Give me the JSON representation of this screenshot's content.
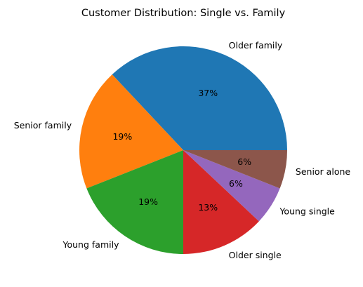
{
  "chart_data": {
    "type": "pie",
    "title": "Customer Distribution: Single vs. Family",
    "slices": [
      {
        "label": "Older family",
        "value": 37,
        "pct_label": "37%",
        "color": "#1f77b4"
      },
      {
        "label": "Senior family",
        "value": 19,
        "pct_label": "19%",
        "color": "#ff7f0e"
      },
      {
        "label": "Young family",
        "value": 19,
        "pct_label": "19%",
        "color": "#2ca02c"
      },
      {
        "label": "Older single",
        "value": 13,
        "pct_label": "13%",
        "color": "#d62728"
      },
      {
        "label": "Young single",
        "value": 6,
        "pct_label": "6%",
        "color": "#9467bd"
      },
      {
        "label": "Senior alone",
        "value": 6,
        "pct_label": "6%",
        "color": "#8c564b"
      }
    ],
    "start_angle_deg": 0,
    "direction": "counterclockwise",
    "legend": "none"
  }
}
